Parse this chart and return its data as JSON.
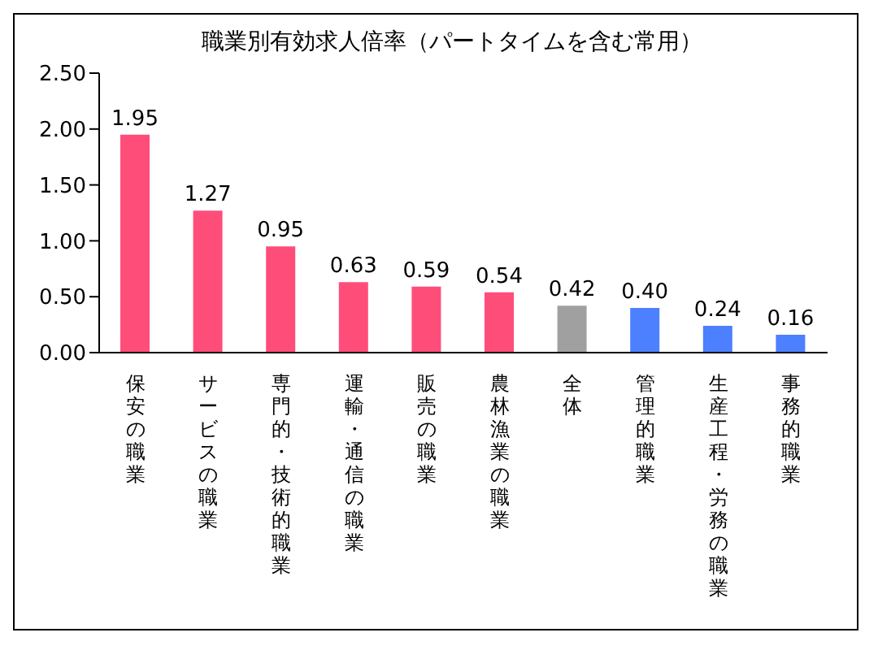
{
  "chart_data": {
    "type": "bar",
    "title": "職業別有効求人倍率（パートタイムを含む常用）",
    "categories": [
      "保安の職業",
      "サービスの職業",
      "専門的・技術的職業",
      "運輸・通信の職業",
      "販売の職業",
      "農林漁業の職業",
      "全体",
      "管理的職業",
      "生産工程・労務の職業",
      "事務的職業"
    ],
    "values": [
      1.95,
      1.27,
      0.95,
      0.63,
      0.59,
      0.54,
      0.42,
      0.4,
      0.24,
      0.16
    ],
    "value_labels": [
      "1.95",
      "1.27",
      "0.95",
      "0.63",
      "0.59",
      "0.54",
      "0.42",
      "0.40",
      "0.24",
      "0.16"
    ],
    "colors": [
      "#ff4d7a",
      "#ff4d7a",
      "#ff4d7a",
      "#ff4d7a",
      "#ff4d7a",
      "#ff4d7a",
      "#a0a0a0",
      "#4d80ff",
      "#4d80ff",
      "#4d80ff"
    ],
    "ylim": [
      0,
      2.5
    ],
    "yticks": [
      {
        "value": 0,
        "label": "0.00"
      },
      {
        "value": 0.5,
        "label": "0.50"
      },
      {
        "value": 1,
        "label": "1.00"
      },
      {
        "value": 1.5,
        "label": "1.50"
      },
      {
        "value": 2,
        "label": "2.00"
      },
      {
        "value": 2.5,
        "label": "2.50"
      }
    ],
    "grid": false,
    "legend": false
  }
}
